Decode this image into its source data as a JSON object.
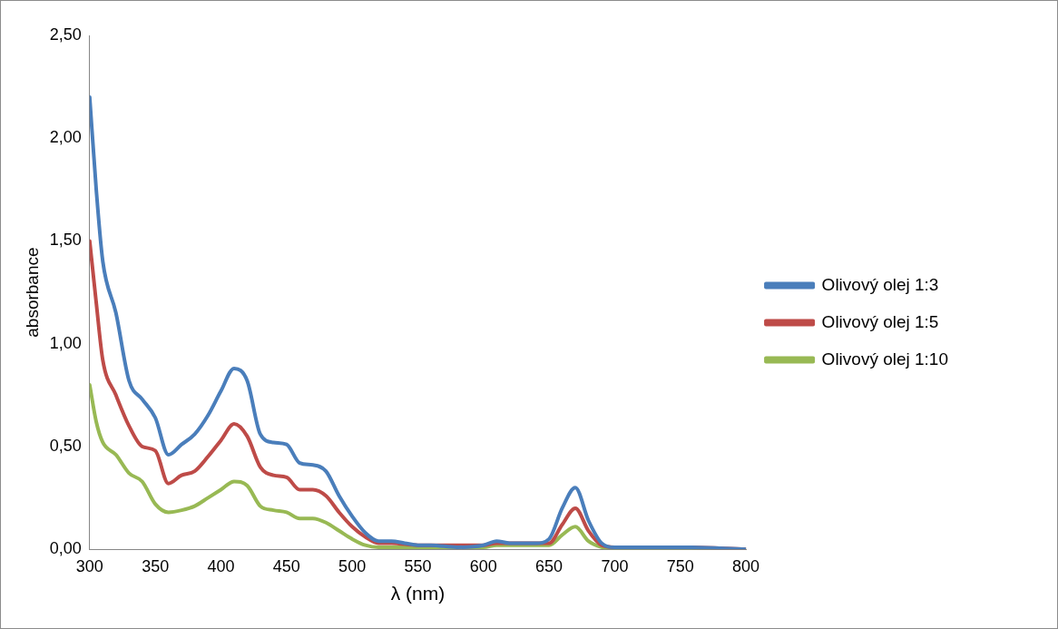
{
  "chart_data": {
    "type": "line",
    "xlabel": "λ (nm)",
    "ylabel": "absorbance",
    "xlim": [
      300,
      800
    ],
    "xticks": [
      300,
      350,
      400,
      450,
      500,
      550,
      600,
      650,
      700,
      750,
      800
    ],
    "ylim": [
      0,
      2.5
    ],
    "yticks": [
      {
        "value": 0,
        "label": "0,00"
      },
      {
        "value": 0.5,
        "label": "0,50"
      },
      {
        "value": 1,
        "label": "1,00"
      },
      {
        "value": 1.5,
        "label": "1,50"
      },
      {
        "value": 2,
        "label": "2,00"
      },
      {
        "value": 2.5,
        "label": "2,50"
      }
    ],
    "grid": false,
    "legend": "right",
    "marker": "none",
    "line_style": "solid",
    "series": [
      {
        "name": "Olivový olej 1:3",
        "color": "#4a7ebb",
        "x": [
          300,
          305,
          310,
          320,
          330,
          340,
          350,
          360,
          370,
          380,
          390,
          400,
          410,
          420,
          430,
          440,
          450,
          460,
          470,
          480,
          490,
          500,
          510,
          520,
          530,
          540,
          550,
          560,
          580,
          600,
          610,
          620,
          640,
          650,
          660,
          670,
          680,
          690,
          700,
          750,
          800
        ],
        "values": [
          2.2,
          1.75,
          1.4,
          1.15,
          0.82,
          0.73,
          0.64,
          0.46,
          0.51,
          0.56,
          0.65,
          0.77,
          0.88,
          0.82,
          0.56,
          0.52,
          0.51,
          0.42,
          0.41,
          0.38,
          0.26,
          0.16,
          0.08,
          0.04,
          0.04,
          0.03,
          0.02,
          0.02,
          0.01,
          0.02,
          0.04,
          0.03,
          0.03,
          0.05,
          0.2,
          0.3,
          0.14,
          0.03,
          0.01,
          0.01,
          0
        ]
      },
      {
        "name": "Olivový olej 1:5",
        "color": "#be4b48",
        "x": [
          300,
          305,
          310,
          320,
          330,
          340,
          350,
          360,
          370,
          380,
          390,
          400,
          410,
          420,
          430,
          440,
          450,
          460,
          470,
          480,
          490,
          500,
          510,
          520,
          530,
          550,
          600,
          610,
          650,
          660,
          670,
          680,
          690,
          700,
          750,
          800
        ],
        "values": [
          1.5,
          1.2,
          0.92,
          0.75,
          0.6,
          0.5,
          0.48,
          0.32,
          0.36,
          0.38,
          0.45,
          0.53,
          0.61,
          0.55,
          0.4,
          0.36,
          0.35,
          0.29,
          0.29,
          0.26,
          0.18,
          0.11,
          0.06,
          0.03,
          0.03,
          0.02,
          0.02,
          0.03,
          0.03,
          0.12,
          0.2,
          0.09,
          0.02,
          0.01,
          0.01,
          0
        ]
      },
      {
        "name": "Olivový olej 1:10",
        "color": "#98b954",
        "x": [
          300,
          305,
          310,
          320,
          330,
          340,
          350,
          360,
          370,
          380,
          390,
          400,
          410,
          420,
          430,
          440,
          450,
          460,
          470,
          480,
          490,
          500,
          510,
          520,
          550,
          600,
          610,
          650,
          660,
          670,
          680,
          690,
          700,
          800
        ],
        "values": [
          0.8,
          0.62,
          0.52,
          0.46,
          0.37,
          0.33,
          0.22,
          0.18,
          0.19,
          0.21,
          0.25,
          0.29,
          0.33,
          0.31,
          0.21,
          0.19,
          0.18,
          0.15,
          0.15,
          0.13,
          0.09,
          0.05,
          0.02,
          0.01,
          0.01,
          0.01,
          0.02,
          0.02,
          0.07,
          0.11,
          0.04,
          0.01,
          0,
          0
        ]
      }
    ]
  }
}
